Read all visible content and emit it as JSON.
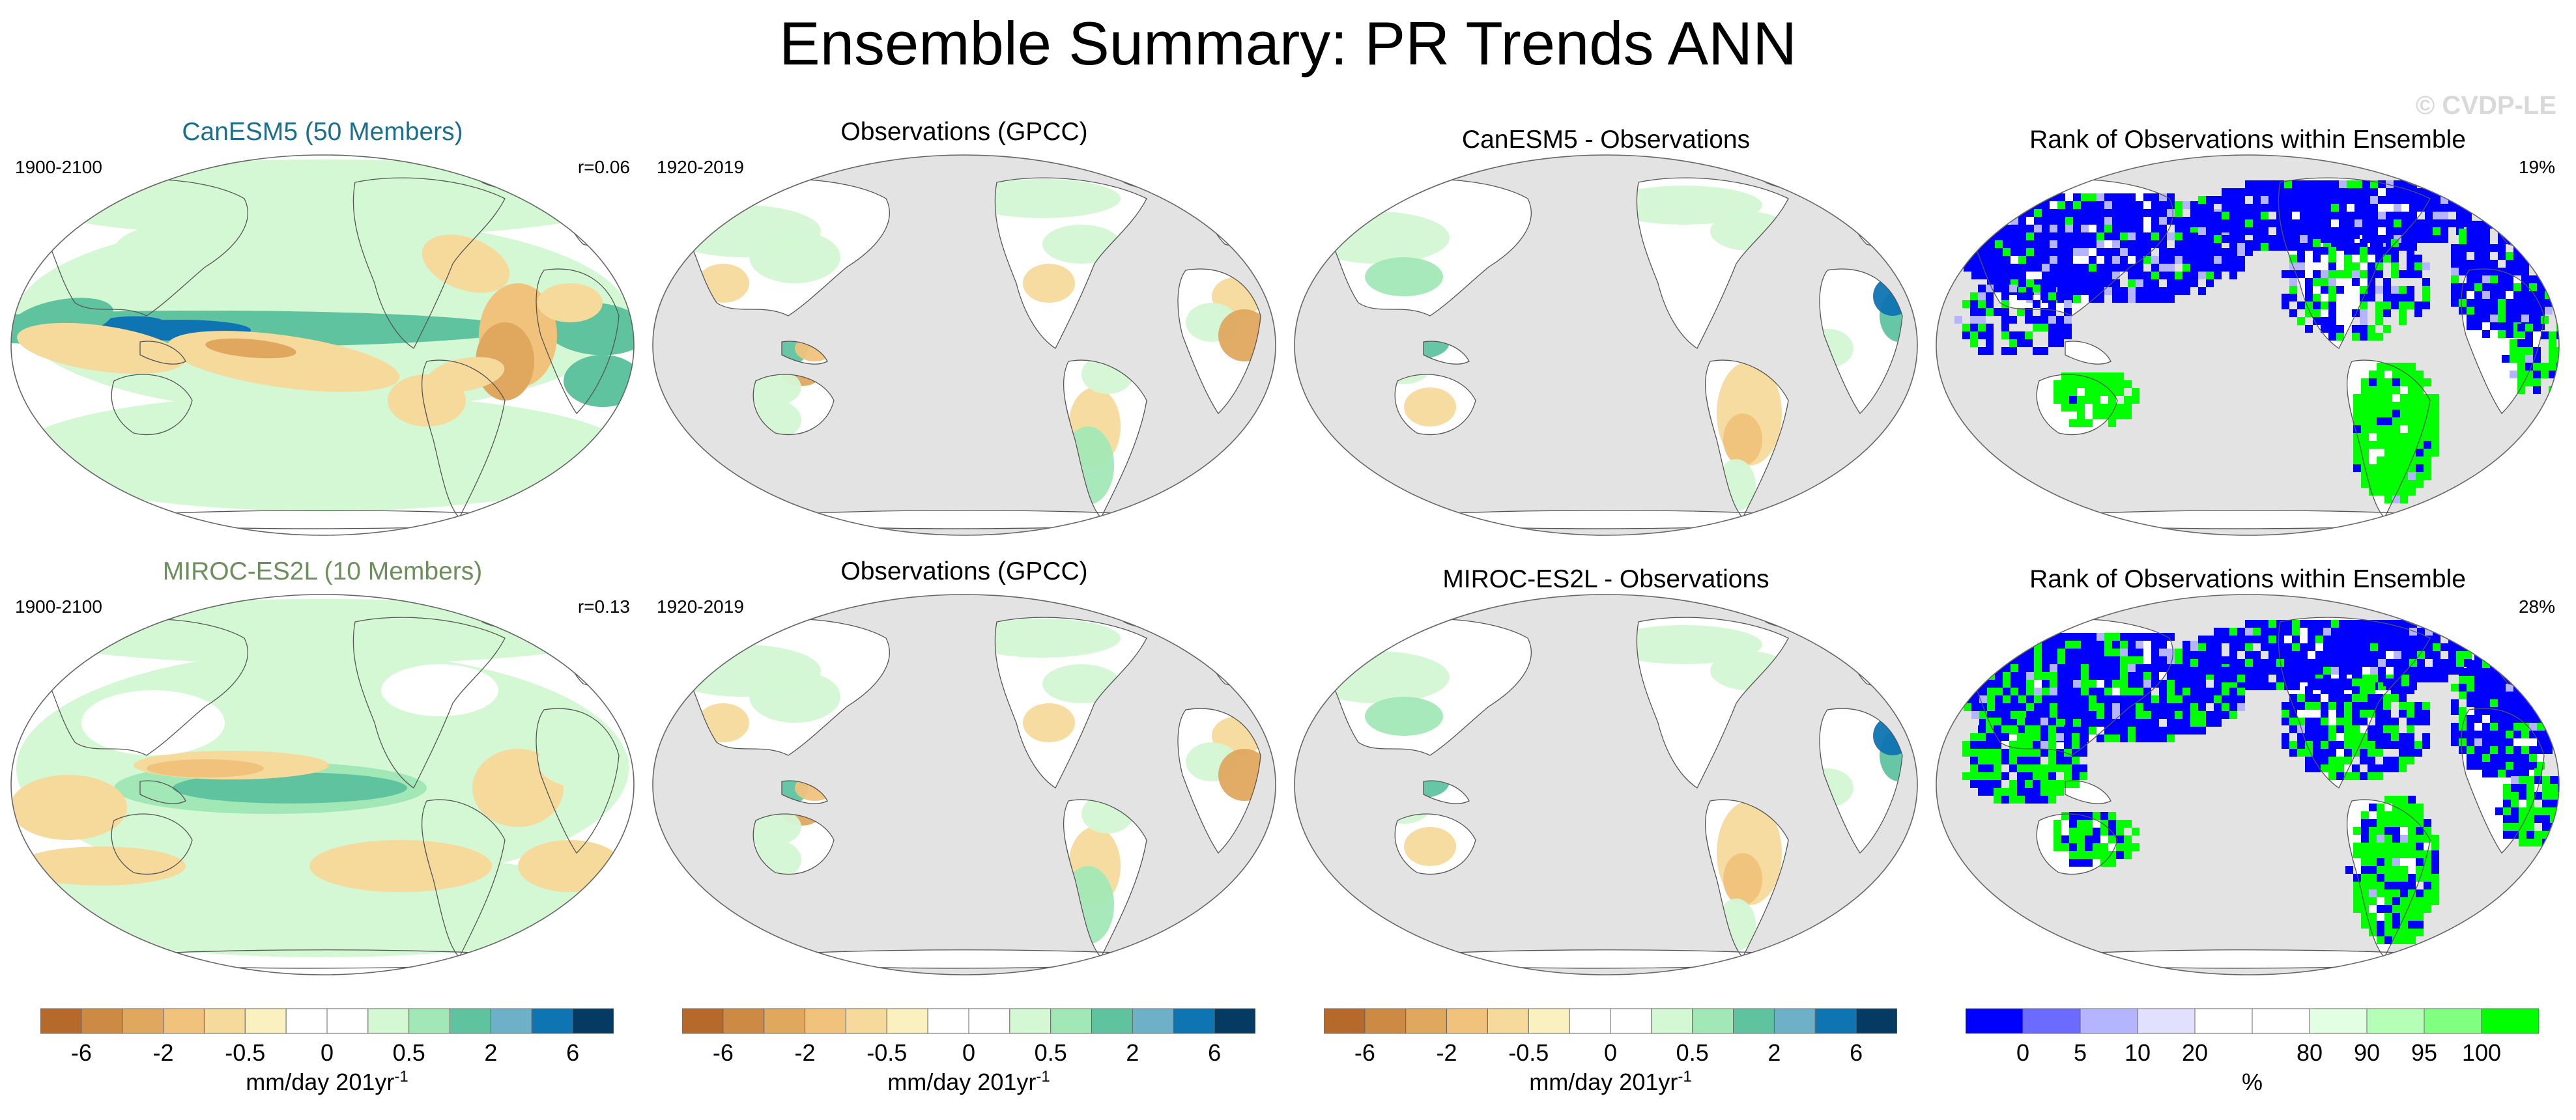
{
  "title": "Ensemble Summary: PR Trends ANN",
  "watermark": "© CVDP-LE",
  "rows": [
    {
      "panels": [
        {
          "title": "CanESM5 (50 Members)",
          "left": "1900-2100",
          "right": "r=0.06",
          "title_color": "#1b6f8c",
          "kind": "model"
        },
        {
          "title": "Observations (GPCC)",
          "left": "1920-2019",
          "right": "",
          "title_color": "#000000",
          "kind": "obs"
        },
        {
          "title": "CanESM5 - Observations",
          "left": "",
          "right": "",
          "title_color": "#000000",
          "kind": "diff"
        },
        {
          "title": "Rank of Observations within Ensemble",
          "left": "",
          "right": "19%",
          "title_color": "#000000",
          "kind": "rank"
        }
      ]
    },
    {
      "panels": [
        {
          "title": "MIROC-ES2L (10 Members)",
          "left": "1900-2100",
          "right": "r=0.13",
          "title_color": "#6c8f5c",
          "kind": "model"
        },
        {
          "title": "Observations (GPCC)",
          "left": "1920-2019",
          "right": "",
          "title_color": "#000000",
          "kind": "obs"
        },
        {
          "title": "MIROC-ES2L - Observations",
          "left": "",
          "right": "",
          "title_color": "#000000",
          "kind": "diff"
        },
        {
          "title": "Rank of Observations within Ensemble",
          "left": "",
          "right": "28%",
          "title_color": "#000000",
          "kind": "rank"
        }
      ]
    }
  ],
  "colorbars": [
    {
      "ticks": [
        "-6",
        "-2",
        "-0.5",
        "0",
        "0.5",
        "2",
        "6"
      ],
      "unit": "mm/day 201yr",
      "unit_sup": "-1"
    },
    {
      "ticks": [
        "-6",
        "-2",
        "-0.5",
        "0",
        "0.5",
        "2",
        "6"
      ],
      "unit": "mm/day 201yr",
      "unit_sup": "-1"
    },
    {
      "ticks": [
        "-6",
        "-2",
        "-0.5",
        "0",
        "0.5",
        "2",
        "6"
      ],
      "unit": "mm/day 201yr",
      "unit_sup": "-1"
    },
    {
      "ticks": [
        "0",
        "5",
        "10",
        "20",
        "80",
        "90",
        "95",
        "100"
      ],
      "unit": "%",
      "unit_sup": ""
    }
  ],
  "colors": {
    "trend_scale": [
      "#b5692a",
      "#cc8a45",
      "#e0a75e",
      "#f0c27c",
      "#f5da9c",
      "#fbf1c0",
      "#ffffff",
      "#ffffff",
      "#d4f7d4",
      "#a2e8b6",
      "#5fc3a0",
      "#6fb0c9",
      "#0f74b2",
      "#053a63"
    ],
    "rank_scale": [
      "#0000ff",
      "#6b6bff",
      "#b5b5ff",
      "#e1e1ff",
      "#ffffff",
      "#ffffff",
      "#e3ffe3",
      "#b6ffb6",
      "#80ff80",
      "#00ff00"
    ],
    "land_mask": "#e3e3e3",
    "ocean": "#ffffff"
  }
}
